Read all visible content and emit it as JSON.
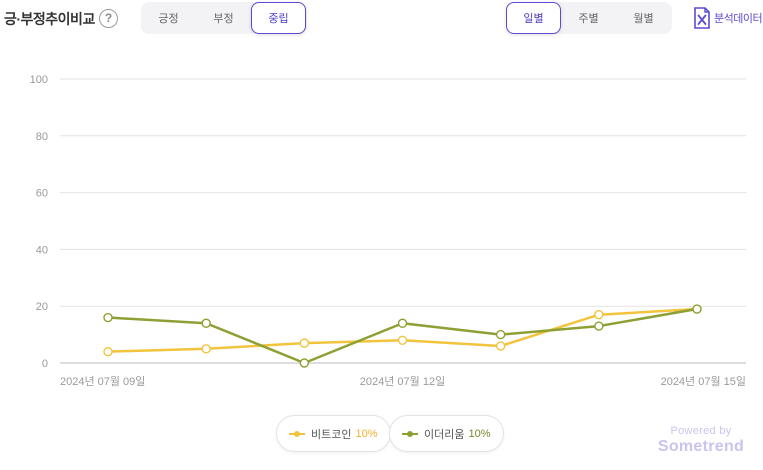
{
  "header": {
    "title": "긍·부정추이비교",
    "help_label": "?",
    "sentiment_tabs": [
      {
        "label": "긍정",
        "active": false
      },
      {
        "label": "부정",
        "active": false
      },
      {
        "label": "중립",
        "active": true
      }
    ],
    "period_tabs": [
      {
        "label": "일별",
        "active": true
      },
      {
        "label": "주별",
        "active": false
      },
      {
        "label": "월별",
        "active": false
      }
    ],
    "export_label": "분석데이터",
    "export_icon": "excel-icon"
  },
  "chart_data": {
    "type": "line",
    "x": [
      "2024-07-09",
      "2024-07-10",
      "2024-07-11",
      "2024-07-12",
      "2024-07-13",
      "2024-07-14",
      "2024-07-15"
    ],
    "x_tick_labels": [
      {
        "index": 0,
        "label": "2024년 07월 09일"
      },
      {
        "index": 3,
        "label": "2024년 07월 12일"
      },
      {
        "index": 6,
        "label": "2024년 07월 15일"
      }
    ],
    "y_ticks": [
      0,
      20,
      40,
      60,
      80,
      100
    ],
    "ylim": [
      0,
      100
    ],
    "grid": true,
    "legend_position": "bottom",
    "series": [
      {
        "name": "비트코인",
        "share": "10%",
        "color": "#f2c43d",
        "share_color": "#f2b134",
        "values": [
          4,
          5,
          7,
          8,
          6,
          17,
          19
        ]
      },
      {
        "name": "이더리움",
        "share": "10%",
        "color": "#8ea034",
        "share_color": "#7a8a2c",
        "values": [
          16,
          14,
          0,
          14,
          10,
          13,
          19
        ]
      }
    ]
  },
  "footer": {
    "powered_by": "Powered by",
    "brand": "Sometrend"
  }
}
